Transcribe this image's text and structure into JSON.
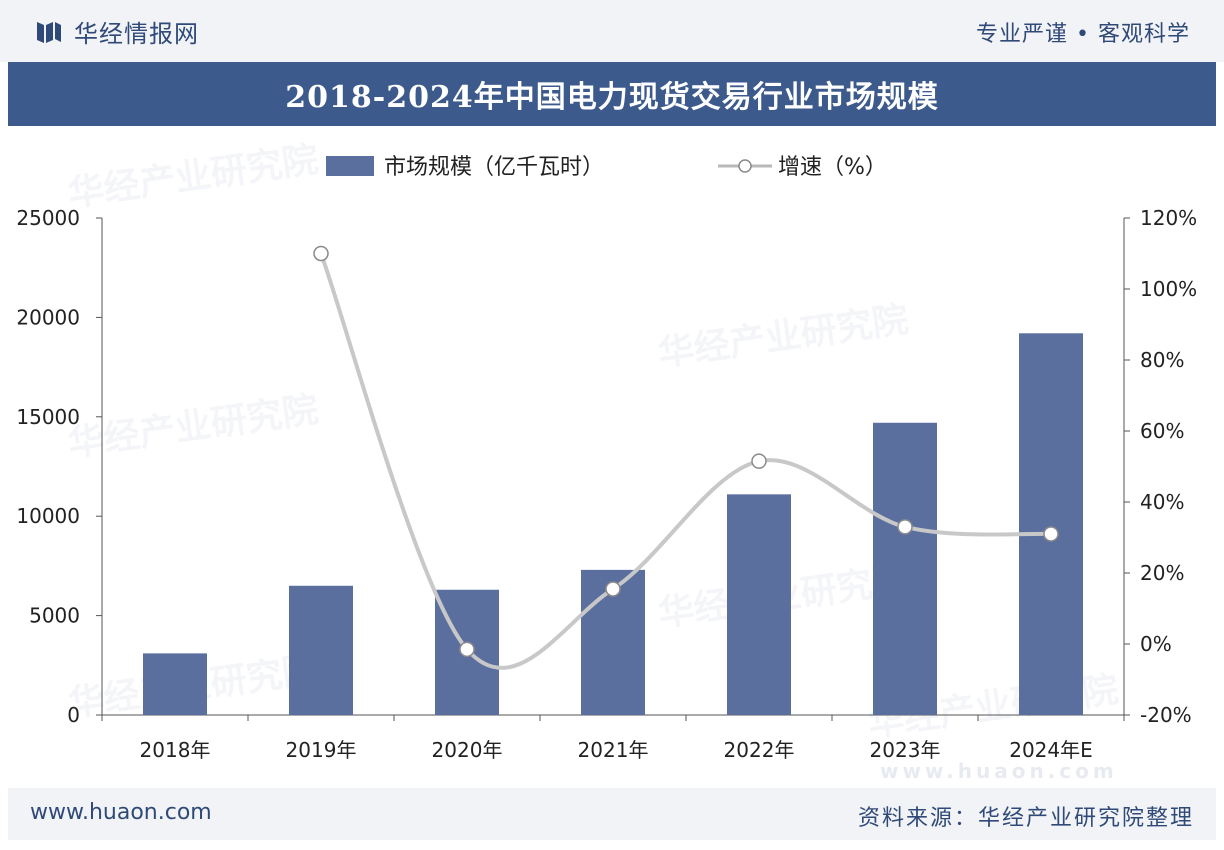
{
  "header": {
    "brand_name": "华经情报网",
    "slogan": "专业严谨 • 客观科学"
  },
  "colors": {
    "bar": "#5b6f9f",
    "line": "#c8c8c8",
    "marker_fill": "#ffffff",
    "marker_stroke": "#8a8a8a",
    "title_bg": "#3d5a8c",
    "brand": "#2f4a78"
  },
  "chart_data": {
    "type": "bar",
    "title": "2018-2024年中国电力现货交易行业市场规模",
    "categories": [
      "2018年",
      "2019年",
      "2020年",
      "2021年",
      "2022年",
      "2023年",
      "2024年E"
    ],
    "series": [
      {
        "name": "市场规模（亿千瓦时）",
        "type": "bar",
        "axis": "left",
        "values": [
          3100,
          6500,
          6300,
          7300,
          11100,
          14700,
          19200
        ]
      },
      {
        "name": "增速（%）",
        "type": "line",
        "axis": "right",
        "values": [
          null,
          110,
          -1.5,
          15.5,
          51.5,
          33,
          31
        ]
      }
    ],
    "y_left": {
      "min": 0,
      "max": 25000,
      "ticks": [
        "0",
        "5000",
        "10000",
        "15000",
        "20000",
        "25000"
      ]
    },
    "y_right": {
      "min": -20,
      "max": 120,
      "ticks": [
        "-20%",
        "0%",
        "20%",
        "40%",
        "60%",
        "80%",
        "100%",
        "120%"
      ]
    },
    "legend_position": "top-center",
    "grid": false
  },
  "watermark": {
    "text": "华经产业研究院",
    "url": "www.huaon.com"
  },
  "footer": {
    "website": "www.huaon.com",
    "source": "资料来源：华经产业研究院整理"
  }
}
